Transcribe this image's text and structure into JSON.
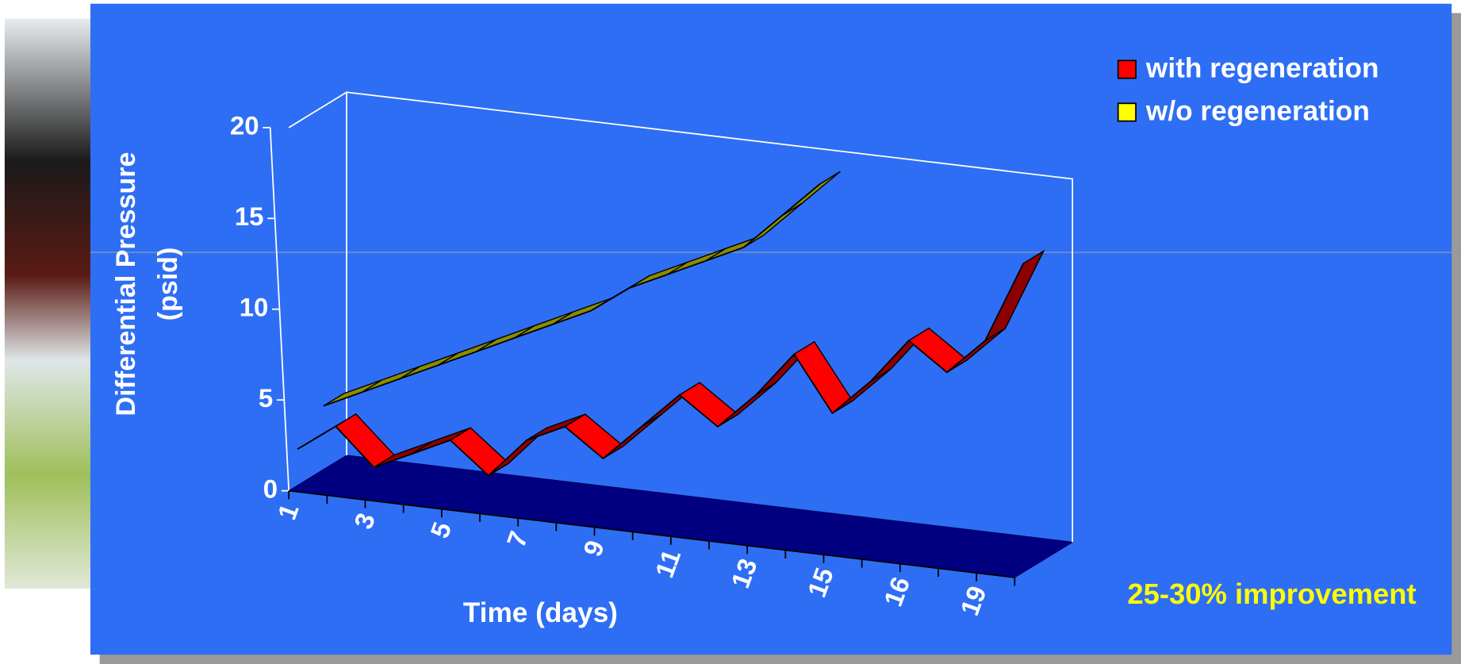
{
  "chart_data": {
    "type": "line3d",
    "xlabel": "Time (days)",
    "ylabel": [
      "Differential Pressure",
      "(psid)"
    ],
    "annotation": "25-30% improvement",
    "categories": [
      "1",
      null,
      "3",
      null,
      "5",
      null,
      "7",
      null,
      "9",
      null,
      "11",
      null,
      "13",
      null,
      "15",
      null,
      "16",
      null,
      "19",
      null
    ],
    "series": [
      {
        "name": "with regeneration",
        "color": "#ff0000",
        "values": [
          2,
          3.5,
          1.5,
          2.5,
          3.5,
          1.8,
          4,
          5,
          3.5,
          5.5,
          7.5,
          6,
          8,
          10.5,
          7.5,
          9.5,
          12,
          10.5,
          12.5,
          17
        ]
      },
      {
        "name": "w/o regeneration",
        "color": "#ffff00",
        "values": [
          3.5,
          4.5,
          5.5,
          6.5,
          7.5,
          8.5,
          9.5,
          10.5,
          12,
          13,
          14,
          15,
          17,
          19,
          null,
          null,
          null,
          null,
          null,
          null
        ]
      }
    ],
    "ylim": [
      0,
      20
    ],
    "yticks": [
      0,
      5,
      10,
      15,
      20
    ],
    "legend": "upper right"
  }
}
